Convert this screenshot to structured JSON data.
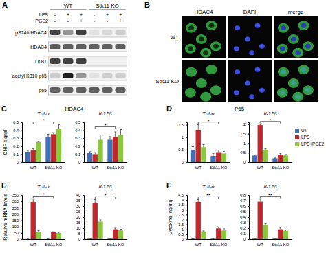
{
  "blot": {
    "panel": "A",
    "groups": [
      "WT",
      "Stk11 KO"
    ],
    "conditions": [
      {
        "name": "LPS",
        "signs": [
          "-",
          "+",
          "+",
          "-",
          "+",
          "+"
        ]
      },
      {
        "name": "PGE2",
        "signs": [
          "-",
          "-",
          "+",
          "-",
          "-",
          "+"
        ]
      }
    ],
    "rows": [
      {
        "label": "pS246 HDAC4",
        "intensity": [
          0.8,
          0.5,
          0.8,
          0.2,
          0.25,
          0.3
        ]
      },
      {
        "label": "HDAC4",
        "intensity": [
          0.7,
          0.7,
          0.7,
          0.7,
          0.7,
          0.7
        ]
      },
      {
        "label": "LKB1",
        "intensity": [
          0.8,
          0.8,
          0.8,
          0,
          0,
          0
        ]
      },
      {
        "label": "acetyl K310 p65",
        "intensity": [
          0.3,
          0.9,
          0.5,
          0.2,
          0.3,
          0.3
        ]
      },
      {
        "label": "p65",
        "intensity": [
          0.7,
          0.7,
          0.7,
          0.7,
          0.7,
          0.7
        ]
      }
    ]
  },
  "micrograph": {
    "panel": "B",
    "columns": [
      "HDAC4",
      "DAPI",
      "merge"
    ],
    "rows": [
      "WT",
      "Stk11 KO"
    ]
  },
  "chart_data": [
    {
      "type": "bar",
      "panel": "C",
      "subtitle": "HDAC4",
      "title": "Tnf-α",
      "y_label": "CHIP signal",
      "categories": [
        "WT",
        "Stk11 KO"
      ],
      "series": [
        {
          "color": "#3f6fb5",
          "values": [
            0.13,
            0.32
          ],
          "errors": [
            0.01,
            0.03
          ]
        },
        {
          "color": "#c0282d",
          "values": [
            0.15,
            0.35
          ],
          "errors": [
            0.02,
            0.02
          ]
        },
        {
          "color": "#8dc63f",
          "values": [
            0.25,
            0.42
          ],
          "errors": [
            0.01,
            0.05
          ]
        }
      ],
      "ylim": [
        0,
        0.5
      ],
      "yticks": [
        0,
        0.1,
        0.2,
        0.3,
        0.4,
        0.5
      ],
      "annotation": "*"
    },
    {
      "type": "bar",
      "title": "Il-12β",
      "categories": [
        "WT",
        "Stk11 KO"
      ],
      "series": [
        {
          "color": "#3f6fb5",
          "values": [
            0.12,
            0.28
          ],
          "errors": [
            0.01,
            0.04
          ]
        },
        {
          "color": "#c0282d",
          "values": [
            0.1,
            0.32
          ],
          "errors": [
            0.02,
            0.06
          ]
        },
        {
          "color": "#8dc63f",
          "values": [
            0.28,
            0.34
          ],
          "errors": [
            0.06,
            0.07
          ]
        }
      ],
      "ylim": [
        0,
        0.5
      ],
      "yticks": [
        0,
        0.1,
        0.2,
        0.3,
        0.4,
        0.5
      ],
      "annotation": "*"
    },
    {
      "type": "bar",
      "panel": "D",
      "subtitle": "P65",
      "title": "Tnf-α",
      "categories": [
        "WT",
        "Stk11 KO"
      ],
      "series": [
        {
          "color": "#3f6fb5",
          "values": [
            0.5,
            0.25
          ],
          "errors": [
            0.12,
            0.1
          ]
        },
        {
          "color": "#c0282d",
          "values": [
            1.3,
            0.4
          ],
          "errors": [
            0.2,
            0.08
          ]
        },
        {
          "color": "#8dc63f",
          "values": [
            0.6,
            0.35
          ],
          "errors": [
            0.1,
            0.08
          ]
        }
      ],
      "ylim": [
        0,
        1.6
      ],
      "yticks": [
        0,
        0.5,
        1,
        1.5
      ],
      "annotation": "*"
    },
    {
      "type": "bar",
      "title": "Il-12β",
      "legend": "right",
      "categories": [
        "WT",
        "Stk11 KO"
      ],
      "series": [
        {
          "name": "UT",
          "color": "#3f6fb5",
          "values": [
            0.35,
            0.2
          ],
          "errors": [
            0.02,
            0.02
          ]
        },
        {
          "name": "LPS",
          "color": "#c0282d",
          "values": [
            1.95,
            0.4
          ],
          "errors": [
            0.05,
            0.06
          ]
        },
        {
          "name": "LPS+PGE2",
          "color": "#8dc63f",
          "values": [
            0.65,
            0.35
          ],
          "errors": [
            0.05,
            0.05
          ]
        }
      ],
      "ylim": [
        0,
        2.1
      ],
      "yticks": [
        0,
        0.5,
        1,
        1.5,
        2
      ],
      "annotation": "*"
    },
    {
      "type": "bar",
      "panel": "E",
      "title": "Tnf-α",
      "y_label": "Relative mRNA levels",
      "categories": [
        "WT",
        "Stk11 KO"
      ],
      "series": [
        {
          "color": "#3f6fb5",
          "values": [
            1,
            1
          ],
          "errors": [
            0.3,
            0.3
          ]
        },
        {
          "color": "#c0282d",
          "values": [
            295,
            55
          ],
          "errors": [
            25,
            5
          ]
        },
        {
          "color": "#8dc63f",
          "values": [
            60,
            50
          ],
          "errors": [
            8,
            6
          ]
        }
      ],
      "ylim": [
        0,
        350
      ],
      "yticks": [
        0,
        50,
        100,
        150,
        200,
        250,
        300,
        350
      ],
      "annotation": "*"
    },
    {
      "type": "bar",
      "title": "Il-12β",
      "categories": [
        "WT",
        "Stk11 KO"
      ],
      "series": [
        {
          "color": "#3f6fb5",
          "values": [
            0.5,
            0.5
          ],
          "errors": [
            0.2,
            0.2
          ]
        },
        {
          "color": "#c0282d",
          "values": [
            33,
            9
          ],
          "errors": [
            3,
            1
          ]
        },
        {
          "color": "#8dc63f",
          "values": [
            16,
            8
          ],
          "errors": [
            1.5,
            1
          ]
        }
      ],
      "ylim": [
        0,
        40
      ],
      "yticks": [
        0,
        5,
        10,
        15,
        20,
        25,
        30,
        35,
        40
      ],
      "annotation": "*"
    },
    {
      "type": "bar",
      "panel": "F",
      "title": "Tnf-α",
      "y_label": "Cytokine (ng/ml)",
      "categories": [
        "WT",
        "Stk11 KO"
      ],
      "series": [
        {
          "color": "#3f6fb5",
          "values": [
            0.05,
            0.05
          ],
          "errors": [
            0.02,
            0.02
          ]
        },
        {
          "color": "#c0282d",
          "values": [
            3.8,
            1.1
          ],
          "errors": [
            0.25,
            0.15
          ]
        },
        {
          "color": "#8dc63f",
          "values": [
            0.8,
            0.9
          ],
          "errors": [
            0.05,
            0.15
          ]
        }
      ],
      "ylim": [
        0,
        4.5
      ],
      "yticks": [
        0,
        0.5,
        1,
        1.5,
        2,
        2.5,
        3,
        3.5,
        4,
        4.5
      ],
      "annotation": "**"
    },
    {
      "type": "bar",
      "title": "Il-12β",
      "categories": [
        "WT",
        "Stk11 KO"
      ],
      "series": [
        {
          "color": "#3f6fb5",
          "values": [
            0.01,
            0.01
          ],
          "errors": [
            0.005,
            0.005
          ]
        },
        {
          "color": "#c0282d",
          "values": [
            0.68,
            0.18
          ],
          "errors": [
            0.05,
            0.03
          ]
        },
        {
          "color": "#8dc63f",
          "values": [
            0.25,
            0.15
          ],
          "errors": [
            0.03,
            0.02
          ]
        }
      ],
      "ylim": [
        0,
        0.8
      ],
      "yticks": [
        0,
        0.1,
        0.2,
        0.3,
        0.4,
        0.5,
        0.6,
        0.7,
        0.8
      ],
      "annotation": "**"
    }
  ]
}
